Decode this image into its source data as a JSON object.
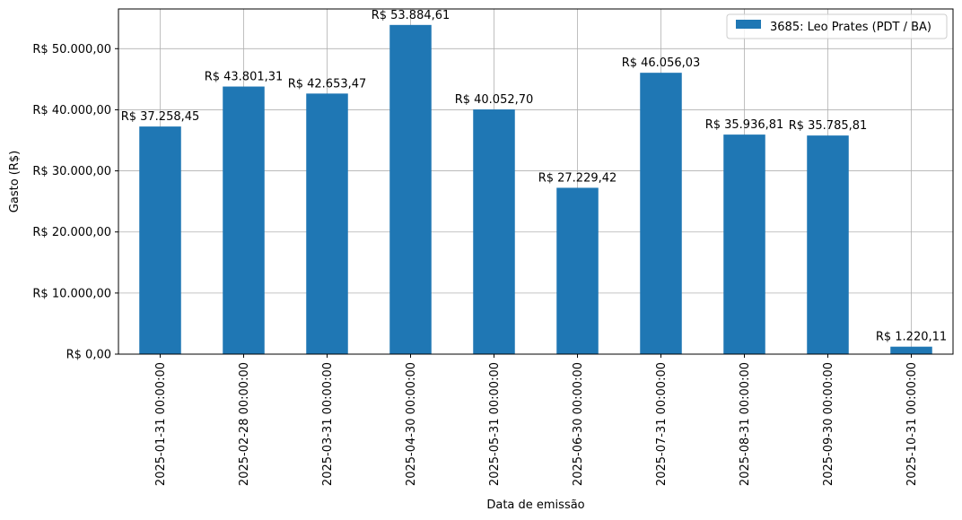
{
  "chart_data": {
    "type": "bar",
    "xlabel": "Data de emissão",
    "ylabel": "Gasto (R$)",
    "categories": [
      "2025-01-31 00:00:00",
      "2025-02-28 00:00:00",
      "2025-03-31 00:00:00",
      "2025-04-30 00:00:00",
      "2025-05-31 00:00:00",
      "2025-06-30 00:00:00",
      "2025-07-31 00:00:00",
      "2025-08-31 00:00:00",
      "2025-09-30 00:00:00",
      "2025-10-31 00:00:00"
    ],
    "series": [
      {
        "name": "3685: Leo Prates (PDT / BA)",
        "color": "#1f77b4",
        "values": [
          37258.45,
          43801.31,
          42653.47,
          53884.61,
          40052.7,
          27229.42,
          46056.03,
          35936.81,
          35785.81,
          1220.11
        ]
      }
    ],
    "data_labels": [
      "R$ 37.258,45",
      "R$ 43.801,31",
      "R$ 42.653,47",
      "R$ 53.884,61",
      "R$ 40.052,70",
      "R$ 27.229,42",
      "R$ 46.056,03",
      "R$ 35.936,81",
      "R$ 35.785,81",
      "R$ 1.220,11"
    ],
    "yticks": [
      0,
      10000,
      20000,
      30000,
      40000,
      50000
    ],
    "ytick_labels": [
      "R$ 0,00",
      "R$ 10.000,00",
      "R$ 20.000,00",
      "R$ 30.000,00",
      "R$ 40.000,00",
      "R$ 50.000,00"
    ],
    "ylim": [
      0,
      56500
    ],
    "grid": true,
    "legend_position": "top-right"
  }
}
